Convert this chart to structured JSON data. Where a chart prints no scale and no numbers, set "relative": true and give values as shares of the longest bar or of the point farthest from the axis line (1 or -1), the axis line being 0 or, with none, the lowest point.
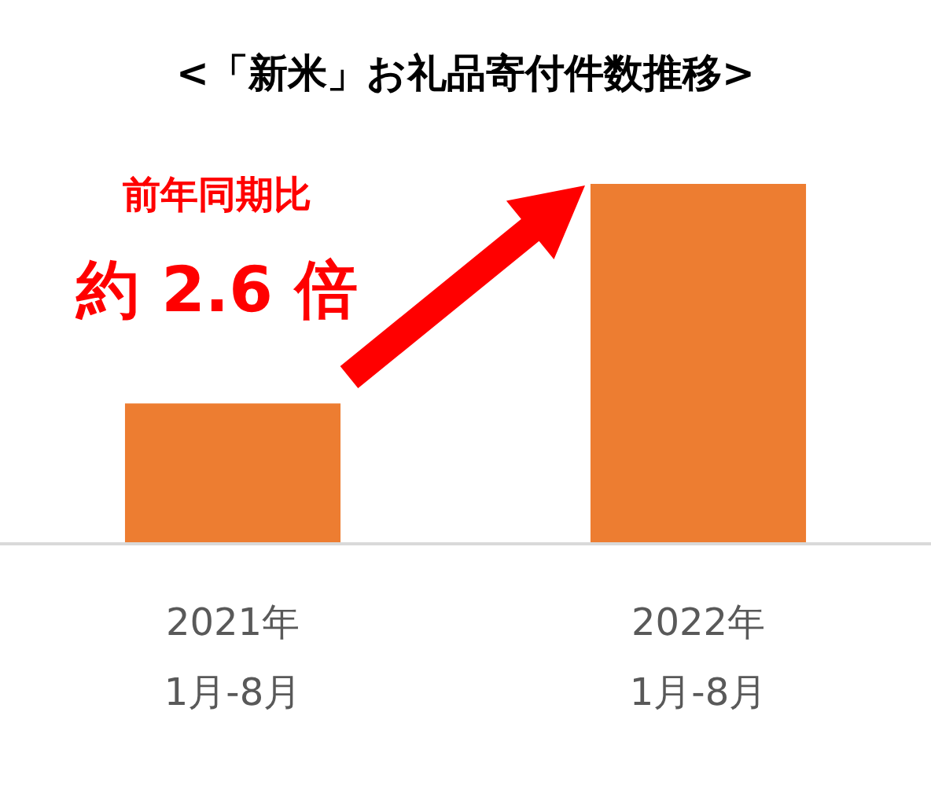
{
  "chart_data": {
    "type": "bar",
    "title": "<「新米」お礼品寄付件数推移>",
    "categories": [
      "2021年\n1月-8月",
      "2022年\n1月-8月"
    ],
    "values": [
      0.39,
      1
    ],
    "color": "#ed7d31",
    "relative": true,
    "annotations": [
      "前年同期比",
      "約 2.6 倍"
    ]
  }
}
